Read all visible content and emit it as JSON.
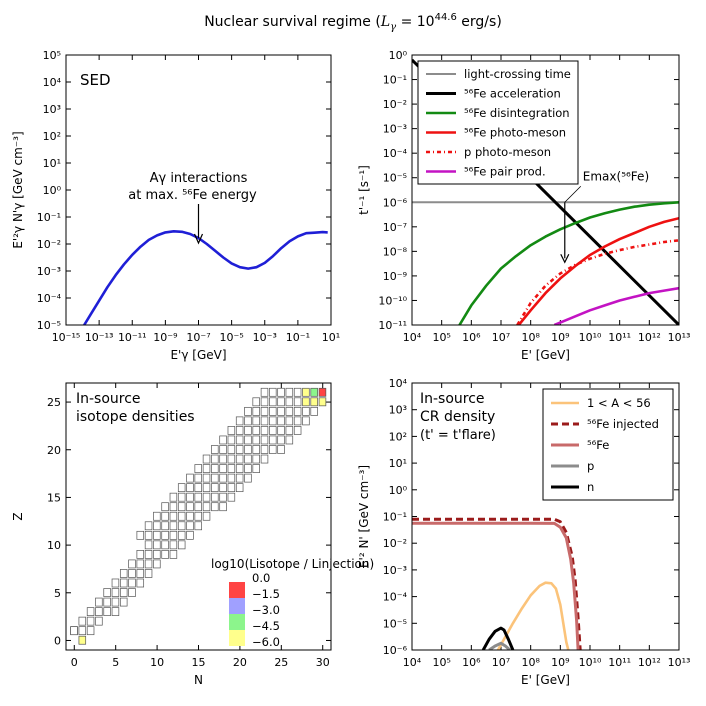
{
  "figure": {
    "title_text": "Nuclear survival regime (",
    "title_math": "L",
    "title_sub": "γ",
    "title_eq": " = 10",
    "title_exp": "44.6",
    "title_unit": " erg/s)"
  },
  "colors": {
    "sed_line": "#1f1fd6",
    "light_crossing": "#8c8c8c",
    "fe_accel": "#000000",
    "fe_disint": "#138a13",
    "fe_photomeson": "#ee1111",
    "p_photomeson": "#ee1111",
    "fe_pair": "#c313c3",
    "light_nuclei": "#fbc37a",
    "fe_injected": "#9b1b1b",
    "fe_density": "#c86a6a",
    "p_density": "#8c8c8c",
    "n_density": "#000000",
    "box_red": "#ff4444",
    "box_blue": "#a0a0ff",
    "box_green": "#8cf58c",
    "box_yellow": "#ffff8c"
  },
  "chart_data": [
    {
      "type": "line",
      "panel": "top-left",
      "label": "SED",
      "xlabel": "E'γ [GeV]",
      "ylabel": "E'²γ N'γ [GeV cm⁻³]",
      "xscale": "log",
      "yscale": "log",
      "xlim": [
        -15,
        1
      ],
      "ylim": [
        -5,
        5
      ],
      "xticks": [
        "10⁻¹⁵",
        "10⁻¹³",
        "10⁻¹¹",
        "10⁻⁹",
        "10⁻⁷",
        "10⁻⁵",
        "10⁻³",
        "10⁻¹",
        "10¹"
      ],
      "yticks": [
        "10⁻⁵",
        "10⁻⁴",
        "10⁻³",
        "10⁻²",
        "10⁻¹",
        "10⁰",
        "10¹",
        "10²",
        "10³",
        "10⁴",
        "10⁵"
      ],
      "annotation_line1": "Aγ interactions",
      "annotation_line2": "at max. ⁵⁶Fe energy",
      "annotation_x": -7,
      "annotation_y": -2,
      "series": [
        {
          "name": "SED",
          "x": [
            -13.9,
            -13.5,
            -13,
            -12.5,
            -12,
            -11.5,
            -11,
            -10.5,
            -10,
            -9.5,
            -9,
            -8.5,
            -8,
            -7.5,
            -7,
            -6.5,
            -6,
            -5.5,
            -5,
            -4.5,
            -4,
            -3.5,
            -3,
            -2.5,
            -2,
            -1.5,
            -1,
            -0.5,
            0,
            0.5,
            0.8
          ],
          "y": [
            -5,
            -4.6,
            -4.1,
            -3.6,
            -3.15,
            -2.75,
            -2.4,
            -2.1,
            -1.85,
            -1.68,
            -1.57,
            -1.53,
            -1.55,
            -1.63,
            -1.78,
            -2.0,
            -2.25,
            -2.5,
            -2.72,
            -2.86,
            -2.91,
            -2.86,
            -2.7,
            -2.45,
            -2.15,
            -1.9,
            -1.72,
            -1.6,
            -1.58,
            -1.56,
            -1.57
          ]
        }
      ]
    },
    {
      "type": "line",
      "panel": "top-right",
      "xlabel": "E' [GeV]",
      "ylabel": "t'⁻¹ [s⁻¹]",
      "xscale": "log",
      "yscale": "log",
      "xlim": [
        4,
        13
      ],
      "ylim": [
        -11,
        0
      ],
      "xticks": [
        "10⁴",
        "10⁵",
        "10⁶",
        "10⁷",
        "10⁸",
        "10⁹",
        "10¹⁰",
        "10¹¹",
        "10¹²",
        "10¹³"
      ],
      "yticks": [
        "10⁻¹¹",
        "10⁻¹⁰",
        "10⁻⁹",
        "10⁻⁸",
        "10⁻⁷",
        "10⁻⁶",
        "10⁻⁵",
        "10⁻⁴",
        "10⁻³",
        "10⁻²",
        "10⁻¹",
        "10⁰"
      ],
      "annotation": "Emax(⁵⁶Fe)",
      "annotation_x": 9.15,
      "annotation_y": -6,
      "legend": "top-left",
      "series": [
        {
          "name": "light-crossing time",
          "color_key": "light_crossing",
          "dash": "solid",
          "x": [
            4,
            13
          ],
          "y": [
            -6,
            -6
          ]
        },
        {
          "name": "⁵⁶Fe acceleration",
          "color_key": "fe_accel",
          "dash": "solid",
          "x": [
            4,
            13
          ],
          "y": [
            -0.2,
            -11.0
          ]
        },
        {
          "name": "⁵⁶Fe disintegration",
          "color_key": "fe_disint",
          "dash": "solid",
          "x": [
            5.6,
            6,
            6.5,
            7,
            7.5,
            8,
            8.5,
            9,
            9.5,
            10,
            10.5,
            11,
            11.5,
            12,
            12.5,
            13
          ],
          "y": [
            -11,
            -10.2,
            -9.4,
            -8.7,
            -8.2,
            -7.75,
            -7.4,
            -7.1,
            -6.85,
            -6.62,
            -6.45,
            -6.3,
            -6.18,
            -6.1,
            -6.04,
            -6.0
          ]
        },
        {
          "name": "⁵⁶Fe photo-meson",
          "color_key": "fe_photomeson",
          "dash": "solid",
          "x": [
            7.6,
            8,
            8.5,
            9,
            9.5,
            10,
            10.5,
            11,
            11.5,
            12,
            12.5,
            13
          ],
          "y": [
            -11,
            -10.4,
            -9.7,
            -9.1,
            -8.6,
            -8.15,
            -7.8,
            -7.5,
            -7.25,
            -7.0,
            -6.8,
            -6.65
          ]
        },
        {
          "name": "p photo-meson",
          "color_key": "p_photomeson",
          "dash": "dashdot",
          "x": [
            7.55,
            8,
            8.5,
            9,
            9.5,
            10,
            10.5,
            11,
            11.5,
            12,
            12.5,
            13
          ],
          "y": [
            -11,
            -10.1,
            -9.4,
            -8.9,
            -8.55,
            -8.3,
            -8.1,
            -7.95,
            -7.82,
            -7.72,
            -7.62,
            -7.55
          ]
        },
        {
          "name": "⁵⁶Fe pair prod.",
          "color_key": "fe_pair",
          "dash": "solid",
          "x": [
            8.8,
            9.2,
            9.6,
            10,
            10.5,
            11,
            11.5,
            12,
            12.5,
            13
          ],
          "y": [
            -11,
            -10.8,
            -10.6,
            -10.4,
            -10.2,
            -10.0,
            -9.85,
            -9.7,
            -9.6,
            -9.5
          ]
        }
      ]
    },
    {
      "type": "heatmap",
      "panel": "bottom-left",
      "label_line1": "In-source",
      "label_line2": "isotope densities",
      "xlabel": "N",
      "ylabel": "Z",
      "xlim": [
        -1,
        31
      ],
      "ylim": [
        -1,
        27
      ],
      "xticks": [
        "0",
        "5",
        "10",
        "15",
        "20",
        "25",
        "30"
      ],
      "yticks": [
        "0",
        "5",
        "10",
        "15",
        "20",
        "25"
      ],
      "colorbar_title": "log10(Lisotope / Linjection)",
      "colorbar_labels": [
        "0.0",
        "−1.5",
        "−3.0",
        "−4.5",
        "−6.0"
      ],
      "colored_cells": [
        {
          "n": 30,
          "z": 26,
          "color_key": "box_red"
        },
        {
          "n": 29,
          "z": 26,
          "color_key": "box_green"
        },
        {
          "n": 28,
          "z": 26,
          "color_key": "box_yellow"
        },
        {
          "n": 29,
          "z": 25,
          "color_key": "box_yellow"
        },
        {
          "n": 30,
          "z": 25,
          "color_key": "box_yellow"
        },
        {
          "n": 28,
          "z": 25,
          "color_key": "box_yellow"
        },
        {
          "n": 1,
          "z": 0,
          "color_key": "box_yellow"
        }
      ]
    },
    {
      "type": "line",
      "panel": "bottom-right",
      "label_line1": "In-source",
      "label_line2": "CR density",
      "label_line3": "(t' = t'flare)",
      "xlabel": "E' [GeV]",
      "ylabel": "E'² N' [GeV cm⁻³]",
      "xscale": "log",
      "yscale": "log",
      "xlim": [
        4,
        13
      ],
      "ylim": [
        -6,
        4
      ],
      "xticks": [
        "10⁴",
        "10⁵",
        "10⁶",
        "10⁷",
        "10⁸",
        "10⁹",
        "10¹⁰",
        "10¹¹",
        "10¹²",
        "10¹³"
      ],
      "yticks": [
        "10⁻⁶",
        "10⁻⁵",
        "10⁻⁴",
        "10⁻³",
        "10⁻²",
        "10⁻¹",
        "10⁰",
        "10¹",
        "10²",
        "10³",
        "10⁴"
      ],
      "legend": "top-right",
      "series": [
        {
          "name": "1 < A < 56",
          "color_key": "light_nuclei",
          "dash": "solid",
          "x": [
            6.9,
            7.1,
            7.4,
            7.7,
            8,
            8.3,
            8.5,
            8.7,
            8.85,
            9,
            9.1,
            9.2,
            9.27
          ],
          "y": [
            -6,
            -5.6,
            -5.0,
            -4.45,
            -3.95,
            -3.6,
            -3.48,
            -3.5,
            -3.7,
            -4.3,
            -5.0,
            -5.7,
            -6
          ]
        },
        {
          "name": "⁵⁶Fe injected",
          "color_key": "fe_injected",
          "dash": "dashed",
          "x": [
            4,
            5,
            6,
            7,
            8,
            8.8,
            9,
            9.2,
            9.4,
            9.5,
            9.6,
            9.67
          ],
          "y": [
            -1.1,
            -1.1,
            -1.1,
            -1.1,
            -1.1,
            -1.1,
            -1.2,
            -1.6,
            -2.5,
            -3.4,
            -4.8,
            -6
          ]
        },
        {
          "name": "⁵⁶Fe",
          "color_key": "fe_density",
          "dash": "solid",
          "x": [
            4,
            5,
            6,
            7,
            8,
            8.8,
            9,
            9.2,
            9.35,
            9.45,
            9.55,
            9.6
          ],
          "y": [
            -1.25,
            -1.25,
            -1.25,
            -1.25,
            -1.25,
            -1.26,
            -1.4,
            -1.8,
            -2.6,
            -3.5,
            -4.9,
            -6
          ]
        },
        {
          "name": "p",
          "color_key": "p_density",
          "dash": "solid",
          "x": [
            6.6,
            6.8,
            7,
            7.15,
            7.3
          ],
          "y": [
            -6,
            -5.85,
            -5.75,
            -5.85,
            -6
          ]
        },
        {
          "name": "n",
          "color_key": "n_density",
          "dash": "solid",
          "x": [
            6.4,
            6.6,
            6.8,
            7,
            7.1,
            7.25,
            7.4
          ],
          "y": [
            -6,
            -5.6,
            -5.3,
            -5.18,
            -5.25,
            -5.6,
            -6
          ]
        }
      ]
    }
  ]
}
